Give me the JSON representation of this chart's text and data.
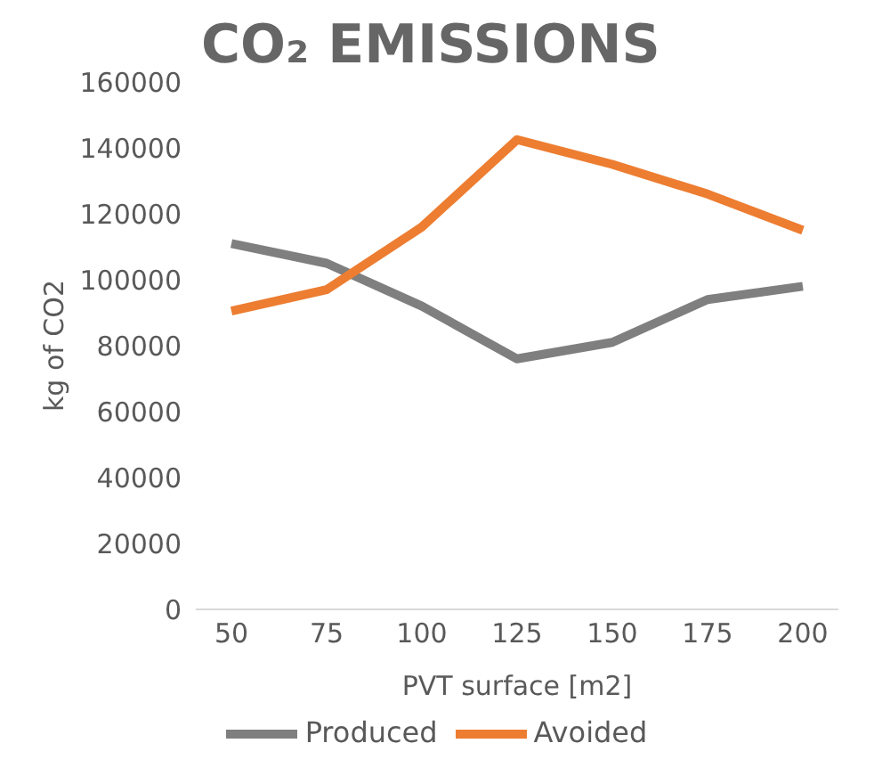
{
  "chart_data": {
    "type": "line",
    "title": "CO₂ EMISSIONS",
    "xlabel": "PVT surface [m2]",
    "ylabel": "kg of CO2",
    "categories": [
      "50",
      "75",
      "100",
      "125",
      "150",
      "175",
      "200"
    ],
    "series": [
      {
        "name": "Produced",
        "color": "#7f7f7f",
        "values": [
          111000,
          105000,
          92000,
          76000,
          81000,
          94000,
          98000
        ]
      },
      {
        "name": "Avoided",
        "color": "#ed7d31",
        "values": [
          90500,
          97000,
          116000,
          142500,
          135000,
          126000,
          115000
        ]
      }
    ],
    "ylim": [
      0,
      160000
    ],
    "yticks": [
      0,
      20000,
      40000,
      60000,
      80000,
      100000,
      120000,
      140000,
      160000
    ],
    "grid": false,
    "legend": "bottom",
    "marker": "none",
    "line_style": "solid"
  }
}
